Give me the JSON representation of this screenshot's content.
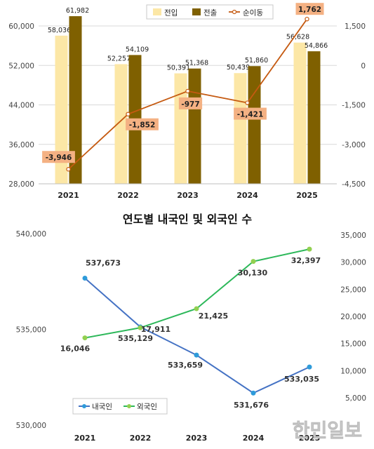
{
  "chart_data": [
    {
      "type": "bar",
      "title": "",
      "categories": [
        "2021",
        "2022",
        "2023",
        "2024",
        "2025"
      ],
      "y_ticks": [
        "60,000",
        "52,000",
        "44,000",
        "36,000",
        "28,000"
      ],
      "y_right_ticks": [
        "1,500",
        "0",
        "-1,500",
        "-3,000",
        "-4,500"
      ],
      "ylim": [
        28000,
        60000
      ],
      "y_right_lim": [
        -4500,
        1500
      ],
      "series": [
        {
          "name": "전입",
          "type": "bar",
          "color": "#FCE7A6",
          "values": [
            58036,
            52257,
            50391,
            50439,
            56628
          ],
          "labels": [
            "58,036",
            "52,257",
            "50,391",
            "50,439",
            "56,628"
          ]
        },
        {
          "name": "전출",
          "type": "bar",
          "color": "#7F6000",
          "values": [
            61982,
            54109,
            51368,
            51860,
            54866
          ],
          "labels": [
            "61,982",
            "54,109",
            "51,368",
            "51,860",
            "54,866"
          ]
        },
        {
          "name": "순이동",
          "type": "line",
          "axis": "right",
          "color": "#C55A11",
          "values": [
            -3946,
            -1852,
            -977,
            -1421,
            1762
          ],
          "labels": [
            "-3,946",
            "-1,852",
            "-977",
            "-1,421",
            "1,762"
          ]
        }
      ],
      "legend_position": "top-center"
    },
    {
      "type": "line",
      "title": "연도별 내국인 및 외국인 수",
      "categories": [
        "2021",
        "2022",
        "2023",
        "2024",
        "2025"
      ],
      "y_ticks": [
        "540,000",
        "535,000",
        "530,000"
      ],
      "y_right_ticks": [
        "35,000",
        "30,000",
        "25,000",
        "20,000",
        "15,000",
        "10,000",
        "5,000"
      ],
      "ylim": [
        530000,
        540000
      ],
      "y_right_lim": [
        5000,
        35000
      ],
      "series": [
        {
          "name": "내국인",
          "axis": "left",
          "color": "#4472C4",
          "values": [
            537673,
            535129,
            533659,
            531676,
            533035
          ],
          "labels": [
            "537,673",
            "535,129",
            "533,659",
            "531,676",
            "533,035"
          ]
        },
        {
          "name": "외국인",
          "axis": "right",
          "color": "#2DB85A",
          "values": [
            16046,
            17911,
            21425,
            30130,
            32397
          ],
          "labels": [
            "16,046",
            "17,911",
            "21,425",
            "30,130",
            "32,397"
          ]
        }
      ],
      "legend_position": "bottom-left"
    }
  ],
  "watermark": "한민일보",
  "colors": {
    "bar_in": "#FCE7A6",
    "bar_out": "#7F6000",
    "net_line": "#C55A11",
    "net_label_bg": "#F4B183",
    "domestic": "#4472C4",
    "foreign": "#2DB85A",
    "domestic_marker": "#2E9BDA",
    "foreign_marker": "#92D050"
  }
}
